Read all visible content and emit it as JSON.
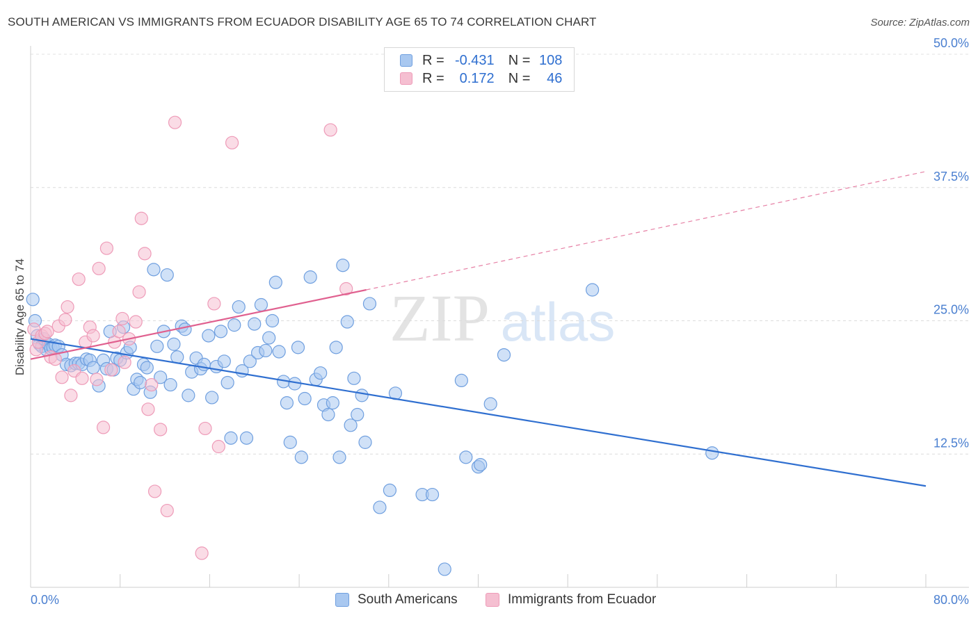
{
  "title": "SOUTH AMERICAN VS IMMIGRANTS FROM ECUADOR DISABILITY AGE 65 TO 74 CORRELATION CHART",
  "source": "Source: ZipAtlas.com",
  "watermark": {
    "zip": "ZIP",
    "atlas": "atlas"
  },
  "colors": {
    "blue_fill": "#a9c8f0",
    "blue_stroke": "#6f9fdf",
    "blue_line": "#2f6fd0",
    "pink_fill": "#f5bfd1",
    "pink_stroke": "#ee9bb8",
    "pink_line": "#e0608f",
    "tick_label": "#4a7fd0"
  },
  "legend": {
    "rows": [
      {
        "r_label": "R = ",
        "r_value": "-0.431",
        "n_label": "N = ",
        "n_value": "108",
        "color": "#a9c8f0",
        "stroke": "#6f9fdf"
      },
      {
        "r_label": "R = ",
        "r_value": "0.172",
        "n_label": "N = ",
        "n_value": "46",
        "color": "#f5bfd1",
        "stroke": "#ee9bb8"
      }
    ]
  },
  "bottom_legend": [
    {
      "label": "South Americans",
      "color": "#a9c8f0",
      "stroke": "#6f9fdf"
    },
    {
      "label": "Immigrants from Ecuador",
      "color": "#f5bfd1",
      "stroke": "#ee9bb8"
    }
  ],
  "chart_data": {
    "type": "scatter",
    "title": "SOUTH AMERICAN VS IMMIGRANTS FROM ECUADOR DISABILITY AGE 65 TO 74 CORRELATION CHART",
    "xlabel": "",
    "ylabel": "Disability Age 65 to 74",
    "xlim": [
      0,
      80
    ],
    "ylim": [
      0,
      50
    ],
    "x_tick_labels": [
      "0.0%",
      "80.0%"
    ],
    "y_ticks": [
      12.5,
      25.0,
      37.5,
      50.0
    ],
    "y_tick_labels": [
      "12.5%",
      "25.0%",
      "37.5%",
      "50.0%"
    ],
    "grid": true,
    "legend_position": "top-center",
    "series": [
      {
        "name": "South Americans",
        "r": -0.431,
        "n": 108,
        "trend": {
          "x": [
            0,
            80
          ],
          "y": [
            23.3,
            9.5
          ],
          "style": "solid"
        },
        "points": [
          [
            0.2,
            27.0
          ],
          [
            0.4,
            25.0
          ],
          [
            0.6,
            23.6
          ],
          [
            0.8,
            22.8
          ],
          [
            1.0,
            22.6
          ],
          [
            1.2,
            23.3
          ],
          [
            1.4,
            22.3
          ],
          [
            1.6,
            22.8
          ],
          [
            1.8,
            22.4
          ],
          [
            2.0,
            22.5
          ],
          [
            2.2,
            22.7
          ],
          [
            2.5,
            22.6
          ],
          [
            2.8,
            21.8
          ],
          [
            3.2,
            20.9
          ],
          [
            3.6,
            20.8
          ],
          [
            4.0,
            21.0
          ],
          [
            4.3,
            21.0
          ],
          [
            4.6,
            20.9
          ],
          [
            5.0,
            21.4
          ],
          [
            5.3,
            21.3
          ],
          [
            5.6,
            20.6
          ],
          [
            6.1,
            18.9
          ],
          [
            6.5,
            21.3
          ],
          [
            6.8,
            20.5
          ],
          [
            7.1,
            24.0
          ],
          [
            7.4,
            20.4
          ],
          [
            7.7,
            21.5
          ],
          [
            8.0,
            21.3
          ],
          [
            8.3,
            24.4
          ],
          [
            8.6,
            22.0
          ],
          [
            8.9,
            22.5
          ],
          [
            9.2,
            18.6
          ],
          [
            9.5,
            19.5
          ],
          [
            9.8,
            19.2
          ],
          [
            10.1,
            20.9
          ],
          [
            10.4,
            20.6
          ],
          [
            10.7,
            18.3
          ],
          [
            11.0,
            29.8
          ],
          [
            11.3,
            22.6
          ],
          [
            11.6,
            19.7
          ],
          [
            11.9,
            24.0
          ],
          [
            12.2,
            29.3
          ],
          [
            12.5,
            19.0
          ],
          [
            12.8,
            22.8
          ],
          [
            13.1,
            21.6
          ],
          [
            13.5,
            24.5
          ],
          [
            13.8,
            24.2
          ],
          [
            14.1,
            18.0
          ],
          [
            14.4,
            20.2
          ],
          [
            14.8,
            21.5
          ],
          [
            15.2,
            20.5
          ],
          [
            15.5,
            20.9
          ],
          [
            15.9,
            23.6
          ],
          [
            16.2,
            17.8
          ],
          [
            16.6,
            20.7
          ],
          [
            17.0,
            24.0
          ],
          [
            17.3,
            21.2
          ],
          [
            17.6,
            19.2
          ],
          [
            17.9,
            14.0
          ],
          [
            18.2,
            24.6
          ],
          [
            18.6,
            26.3
          ],
          [
            18.9,
            20.3
          ],
          [
            19.3,
            14.0
          ],
          [
            19.6,
            21.2
          ],
          [
            20.0,
            24.7
          ],
          [
            20.3,
            22.0
          ],
          [
            20.6,
            26.5
          ],
          [
            21.0,
            22.2
          ],
          [
            21.3,
            23.4
          ],
          [
            21.6,
            25.0
          ],
          [
            21.9,
            28.6
          ],
          [
            22.2,
            22.1
          ],
          [
            22.6,
            19.3
          ],
          [
            22.9,
            17.3
          ],
          [
            23.2,
            13.6
          ],
          [
            23.6,
            19.1
          ],
          [
            23.9,
            22.5
          ],
          [
            24.2,
            12.2
          ],
          [
            24.5,
            17.7
          ],
          [
            25.0,
            29.1
          ],
          [
            25.5,
            19.5
          ],
          [
            25.9,
            20.1
          ],
          [
            26.2,
            17.1
          ],
          [
            26.6,
            16.2
          ],
          [
            27.0,
            17.3
          ],
          [
            27.3,
            22.5
          ],
          [
            27.6,
            12.2
          ],
          [
            27.9,
            30.2
          ],
          [
            28.3,
            24.9
          ],
          [
            28.6,
            15.2
          ],
          [
            28.9,
            19.6
          ],
          [
            29.2,
            16.2
          ],
          [
            29.6,
            18.0
          ],
          [
            29.9,
            13.6
          ],
          [
            30.3,
            26.6
          ],
          [
            31.2,
            7.5
          ],
          [
            32.1,
            9.1
          ],
          [
            32.6,
            18.2
          ],
          [
            35.0,
            8.7
          ],
          [
            35.9,
            8.7
          ],
          [
            37.0,
            1.7
          ],
          [
            38.5,
            19.4
          ],
          [
            38.9,
            12.2
          ],
          [
            40.0,
            11.3
          ],
          [
            40.2,
            11.5
          ],
          [
            41.1,
            17.2
          ],
          [
            42.3,
            21.8
          ],
          [
            50.2,
            27.9
          ],
          [
            60.9,
            12.6
          ]
        ]
      },
      {
        "name": "Immigrants from Ecuador",
        "r": 0.172,
        "n": 46,
        "trend": {
          "x": [
            0,
            30
          ],
          "y": [
            21.4,
            27.9
          ],
          "style": "solid",
          "extension": {
            "x": [
              30,
              80
            ],
            "y": [
              27.9,
              39.0
            ],
            "style": "dashed"
          }
        },
        "points": [
          [
            0.3,
            24.2
          ],
          [
            0.5,
            22.3
          ],
          [
            0.7,
            23.0
          ],
          [
            1.0,
            23.6
          ],
          [
            1.3,
            23.8
          ],
          [
            1.5,
            24.0
          ],
          [
            1.8,
            21.6
          ],
          [
            2.2,
            21.4
          ],
          [
            2.5,
            24.5
          ],
          [
            2.8,
            19.7
          ],
          [
            3.1,
            25.1
          ],
          [
            3.3,
            26.3
          ],
          [
            3.6,
            18.0
          ],
          [
            3.9,
            20.3
          ],
          [
            4.3,
            28.9
          ],
          [
            4.6,
            19.6
          ],
          [
            4.9,
            23.0
          ],
          [
            5.3,
            24.4
          ],
          [
            5.6,
            23.6
          ],
          [
            5.9,
            19.5
          ],
          [
            6.1,
            29.9
          ],
          [
            6.5,
            15.0
          ],
          [
            6.8,
            31.8
          ],
          [
            7.2,
            20.4
          ],
          [
            7.5,
            23.0
          ],
          [
            7.9,
            24.0
          ],
          [
            8.2,
            25.2
          ],
          [
            8.4,
            21.1
          ],
          [
            8.8,
            23.3
          ],
          [
            9.4,
            24.9
          ],
          [
            9.7,
            27.7
          ],
          [
            9.9,
            34.6
          ],
          [
            10.2,
            31.3
          ],
          [
            10.5,
            16.7
          ],
          [
            10.8,
            19.0
          ],
          [
            11.1,
            9.0
          ],
          [
            11.6,
            14.8
          ],
          [
            12.2,
            7.2
          ],
          [
            12.9,
            43.6
          ],
          [
            15.3,
            3.2
          ],
          [
            15.6,
            14.9
          ],
          [
            16.4,
            26.6
          ],
          [
            16.8,
            13.2
          ],
          [
            18.0,
            41.7
          ],
          [
            26.8,
            42.9
          ],
          [
            28.2,
            28.0
          ]
        ]
      }
    ]
  }
}
